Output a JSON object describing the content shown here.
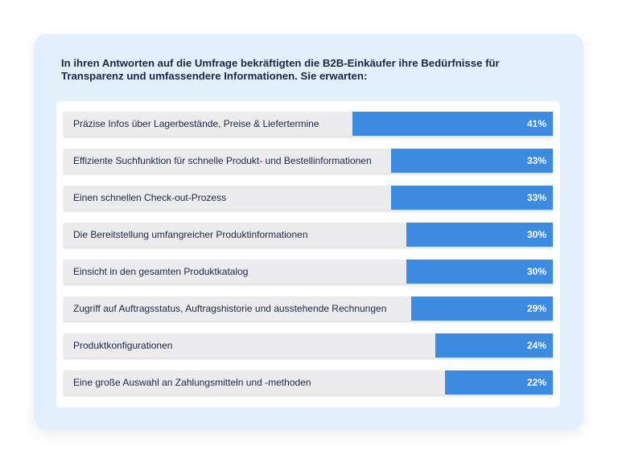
{
  "chart_data": {
    "type": "bar",
    "orientation": "horizontal",
    "title": "In ihren Antworten auf die Umfrage bekräftigten die B2B-Einkäufer ihre Bedürfnisse für Transparenz und umfassendere Informationen. Sie erwarten:",
    "value_suffix": "%",
    "xlim": [
      0,
      100
    ],
    "categories": [
      "Präzise Infos über Lagerbestände, Preise & Liefertermine",
      "Effiziente Suchfunktion für schnelle Produkt- und Bestellinformationen",
      "Einen schnellen Check-out-Prozess",
      "Die Bereitstellung umfangreicher Produktinformationen",
      "Einsicht in den gesamten Produktkatalog",
      "Zugriff auf Auftragsstatus, Auftragshistorie und ausstehende Rechnungen",
      "Produktkonfigurationen",
      "Eine große Auswahl an Zahlungsmitteln und -methoden"
    ],
    "values": [
      41,
      33,
      33,
      30,
      30,
      29,
      24,
      22
    ],
    "colors": {
      "bar": "#3c8be0",
      "track": "#ececef",
      "card": "#e3effb",
      "title": "#1b2746"
    }
  }
}
